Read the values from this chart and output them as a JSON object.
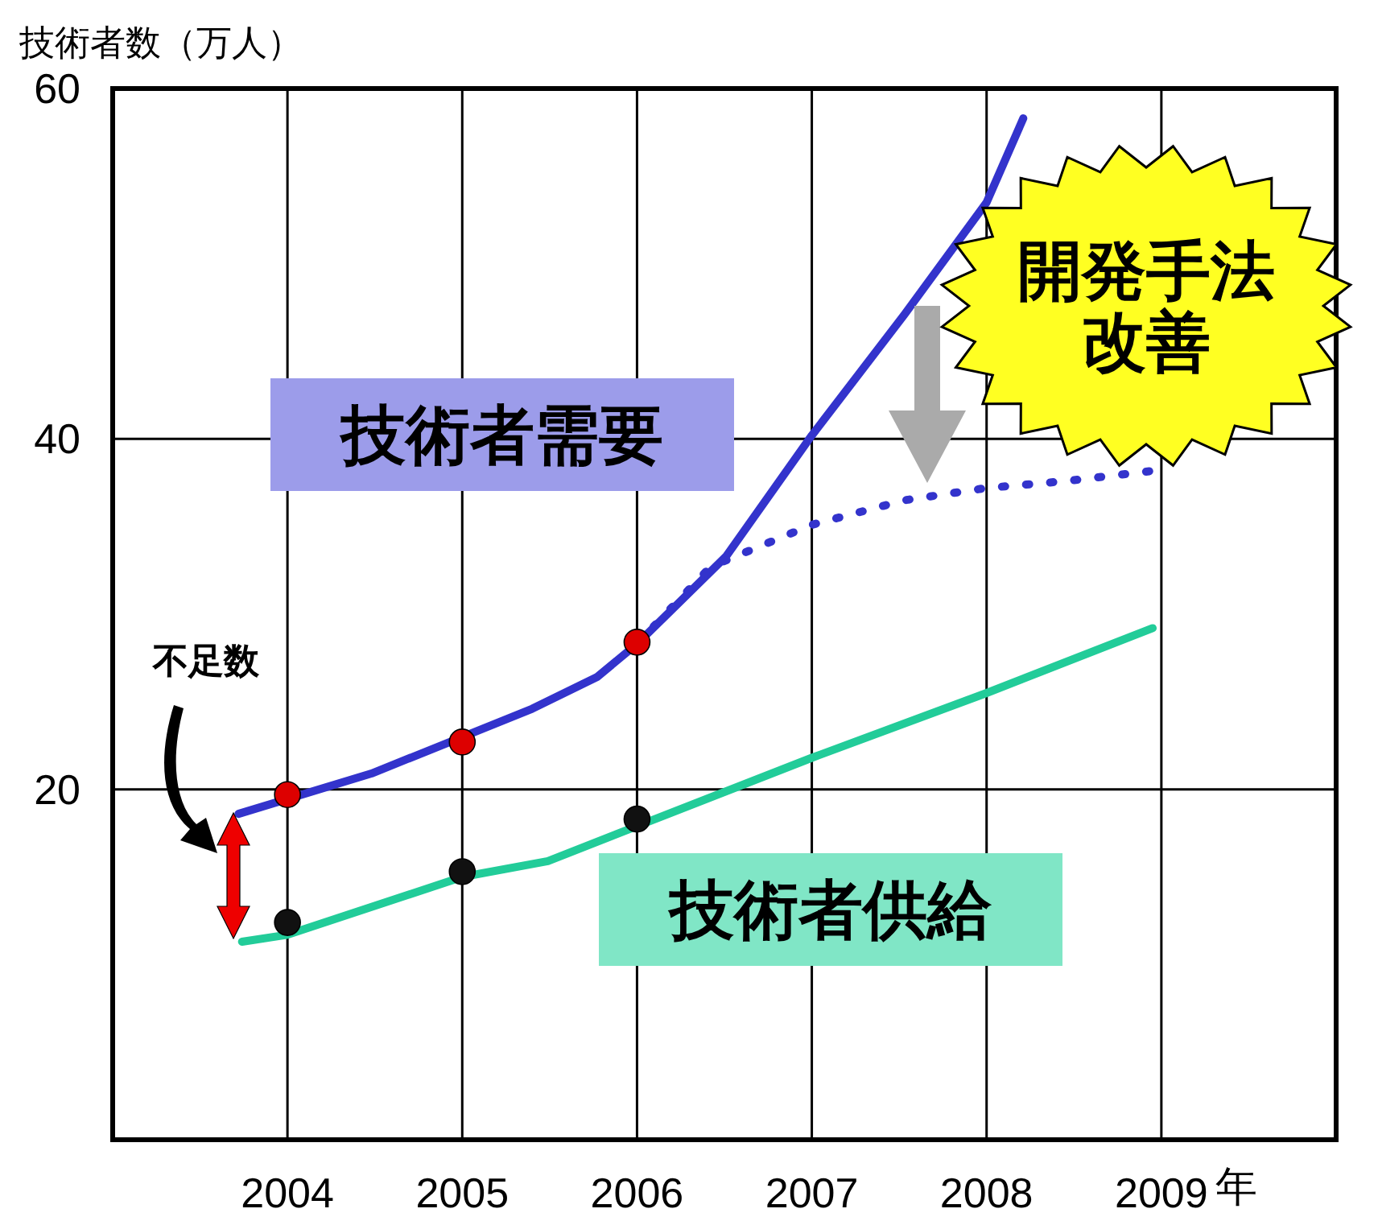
{
  "chart_data": {
    "type": "line",
    "ylabel": "技術者数（万人）",
    "xlabel": "年",
    "xlim": [
      2003,
      2010
    ],
    "ylim": [
      0,
      60
    ],
    "xticks": [
      2004,
      2005,
      2006,
      2007,
      2008,
      2009
    ],
    "yticks": [
      20,
      40,
      60
    ],
    "grid": true,
    "legend": false,
    "series": [
      {
        "name": "技術者需要",
        "color": "#3333cc",
        "line_style": "solid",
        "x": [
          2003.72,
          2004.48,
          2005.4,
          2005.77,
          2006.0,
          2006.51,
          2007.0,
          2007.53,
          2008.0,
          2008.21
        ],
        "values": [
          18.6,
          20.9,
          24.6,
          26.4,
          28.3,
          33.3,
          40.2,
          47.1,
          53.5,
          58.3
        ]
      },
      {
        "color": "#3333cc",
        "line_style": "dotted",
        "x": [
          2006.0,
          2006.42,
          2007.0,
          2007.53,
          2008.0,
          2008.46,
          2008.97
        ],
        "values": [
          28.3,
          32.7,
          35.1,
          36.5,
          37.2,
          37.6,
          38.2
        ]
      },
      {
        "name": "技術者供給",
        "color": "#22cc99",
        "line_style": "solid",
        "x": [
          2003.74,
          2004.0,
          2005.0,
          2005.49,
          2006.0,
          2007.0,
          2008.0,
          2008.95
        ],
        "values": [
          11.3,
          11.7,
          15.0,
          15.9,
          17.9,
          21.8,
          25.5,
          29.2
        ]
      },
      {
        "type": "scatter",
        "color": "#dd0000",
        "marker": "circle",
        "x": [
          2004,
          2005,
          2006
        ],
        "values": [
          19.7,
          22.7,
          28.4
        ]
      },
      {
        "type": "scatter",
        "color": "#111111",
        "marker": "circle",
        "x": [
          2004,
          2005,
          2006
        ],
        "values": [
          12.4,
          15.3,
          18.3
        ]
      }
    ],
    "annotations": [
      "開発手法改善",
      "不足数"
    ]
  }
}
